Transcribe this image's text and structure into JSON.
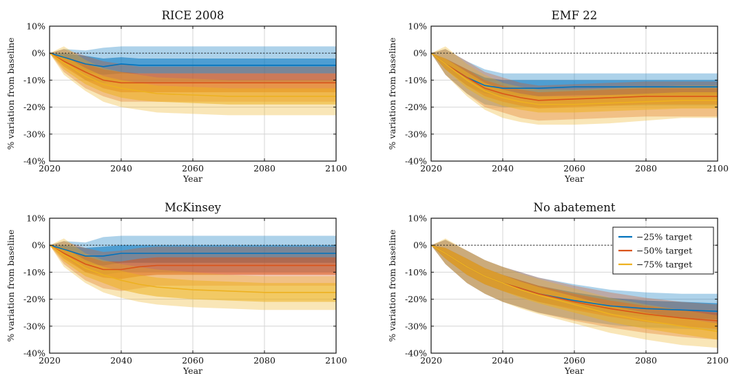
{
  "chart_data": [
    {
      "type": "area",
      "title": "RICE 2008",
      "xlabel": "Year",
      "ylabel": "% variation from baseline",
      "xlim": [
        2020,
        2100
      ],
      "ylim": [
        -40,
        10
      ],
      "xticks": [
        "2020",
        "2040",
        "2060",
        "2080",
        "2100"
      ],
      "yticks": [
        "10%",
        "0%",
        "-10%",
        "-20%",
        "-30%",
        "-40%"
      ],
      "grid": true,
      "baseline": 0,
      "legend": false,
      "x": [
        2020,
        2024,
        2030,
        2035,
        2040,
        2045,
        2050,
        2060,
        2070,
        2080,
        2090,
        2100
      ],
      "series": [
        {
          "name": "−25% target",
          "color": "#0072BD",
          "median": [
            0,
            -1.5,
            -4,
            -5,
            -4,
            -4.5,
            -4.5,
            -4.5,
            -4.5,
            -4.5,
            -4.5,
            -4.5
          ],
          "inner_lo": [
            0,
            -3,
            -7,
            -8,
            -7.5,
            -7.5,
            -7.5,
            -7.5,
            -7.5,
            -7.5,
            -7.5,
            -7.5
          ],
          "inner_hi": [
            0,
            0,
            -1,
            -2,
            -1.5,
            -2,
            -2,
            -2,
            -2,
            -2,
            -2,
            -2
          ],
          "outer_lo": [
            0,
            -4,
            -10,
            -11,
            -11,
            -11,
            -11,
            -11,
            -11,
            -11,
            -11,
            -11
          ],
          "outer_hi": [
            0,
            1.5,
            1,
            2,
            2.5,
            2.5,
            2.5,
            2.5,
            2.5,
            2.5,
            2.5,
            2.5
          ]
        },
        {
          "name": "−50% target",
          "color": "#D95319",
          "median": [
            0,
            -3,
            -7,
            -10,
            -11,
            -11,
            -11,
            -11,
            -11,
            -11,
            -11,
            -11
          ],
          "inner_lo": [
            0,
            -5,
            -10,
            -13,
            -14.5,
            -14.5,
            -14.5,
            -14.5,
            -14.5,
            -14.5,
            -14.5,
            -14.5
          ],
          "inner_hi": [
            0,
            -1,
            -4,
            -6,
            -7,
            -7.5,
            -7.5,
            -7.5,
            -7.5,
            -7.5,
            -7.5,
            -7.5
          ],
          "outer_lo": [
            0,
            -7,
            -13,
            -16,
            -18,
            -18,
            -18,
            -18,
            -18,
            -18,
            -18,
            -18
          ],
          "outer_hi": [
            0,
            1.5,
            -1,
            -3,
            -4,
            -5,
            -5,
            -5,
            -5,
            -5,
            -5,
            -5
          ]
        },
        {
          "name": "−75% target",
          "color": "#EDB120",
          "median": [
            0,
            -3.5,
            -8.5,
            -11.5,
            -13,
            -14,
            -15,
            -15.5,
            -16,
            -16,
            -16,
            -16
          ],
          "inner_lo": [
            0,
            -6,
            -11.5,
            -14.5,
            -16.5,
            -17.5,
            -18,
            -18.5,
            -19,
            -19,
            -19,
            -19
          ],
          "inner_hi": [
            0,
            -1,
            -5.5,
            -8.5,
            -10,
            -11,
            -12,
            -12.5,
            -13,
            -13,
            -13,
            -13
          ],
          "outer_lo": [
            0,
            -8,
            -14,
            -18,
            -20,
            -21,
            -22,
            -22.5,
            -23,
            -23,
            -23,
            -23
          ],
          "outer_hi": [
            0,
            2.5,
            -2.5,
            -5.5,
            -7,
            -8,
            -9,
            -9.5,
            -10,
            -10,
            -10,
            -10
          ]
        }
      ]
    },
    {
      "type": "area",
      "title": "EMF 22",
      "xlabel": "Year",
      "ylabel": "% variation from baseline",
      "xlim": [
        2020,
        2100
      ],
      "ylim": [
        -40,
        10
      ],
      "xticks": [
        "2020",
        "2040",
        "2060",
        "2080",
        "2100"
      ],
      "yticks": [
        "10%",
        "0%",
        "-10%",
        "-20%",
        "-30%",
        "-40%"
      ],
      "grid": true,
      "baseline": 0,
      "legend": false,
      "x": [
        2020,
        2024,
        2030,
        2035,
        2040,
        2045,
        2050,
        2060,
        2070,
        2080,
        2090,
        2100
      ],
      "series": [
        {
          "name": "−25% target",
          "color": "#0072BD",
          "median": [
            0,
            -4,
            -9,
            -12,
            -13,
            -13,
            -13,
            -12.5,
            -12.5,
            -12.5,
            -12.5,
            -12.5
          ],
          "inner_lo": [
            0,
            -6,
            -12,
            -15,
            -16,
            -16,
            -16,
            -15.5,
            -15.5,
            -15.5,
            -15.5,
            -15.5
          ],
          "inner_hi": [
            0,
            -2,
            -6,
            -9,
            -10,
            -10,
            -10,
            -10,
            -10,
            -10,
            -10,
            -10
          ],
          "outer_lo": [
            0,
            -8,
            -15,
            -19,
            -20,
            -20,
            -20,
            -19.5,
            -19.5,
            -19.5,
            -19.5,
            -19.5
          ],
          "outer_hi": [
            0,
            1.5,
            -3,
            -6,
            -7.5,
            -7.5,
            -7.5,
            -7.5,
            -7.5,
            -7.5,
            -7.5,
            -7.5
          ]
        },
        {
          "name": "−50% target",
          "color": "#D95319",
          "median": [
            0,
            -4,
            -9,
            -13,
            -15,
            -16.5,
            -17.5,
            -17,
            -16.5,
            -16,
            -16,
            -16
          ],
          "inner_lo": [
            0,
            -6,
            -12,
            -16,
            -18,
            -19.5,
            -20.5,
            -20,
            -19.5,
            -19,
            -19,
            -19
          ],
          "inner_hi": [
            0,
            -2,
            -6,
            -10,
            -12,
            -13.5,
            -14.5,
            -14,
            -13.5,
            -13,
            -13,
            -13
          ],
          "outer_lo": [
            0,
            -8,
            -15,
            -20,
            -22,
            -24,
            -25,
            -24.5,
            -24,
            -23.5,
            -23.5,
            -23.5
          ],
          "outer_hi": [
            0,
            1.5,
            -3,
            -7,
            -9,
            -11,
            -12,
            -11.5,
            -11,
            -10.5,
            -10.5,
            -10.5
          ]
        },
        {
          "name": "−75% target",
          "color": "#EDB120",
          "median": [
            0,
            -4,
            -10,
            -14,
            -16.5,
            -18,
            -19,
            -19,
            -18.5,
            -18,
            -17.5,
            -17.5
          ],
          "inner_lo": [
            0,
            -6,
            -13,
            -17,
            -19.5,
            -21,
            -22,
            -22,
            -21.5,
            -21,
            -20.5,
            -20.5
          ],
          "inner_hi": [
            0,
            -2,
            -7,
            -11,
            -13.5,
            -15,
            -16,
            -16,
            -15.5,
            -15,
            -14.5,
            -14.5
          ],
          "outer_lo": [
            0,
            -8,
            -16,
            -21,
            -24,
            -25.5,
            -26.5,
            -26.5,
            -26,
            -25,
            -24,
            -24
          ],
          "outer_hi": [
            0,
            2.5,
            -4,
            -8,
            -11,
            -12.5,
            -13.5,
            -13.5,
            -13,
            -12.5,
            -12,
            -12
          ]
        }
      ]
    },
    {
      "type": "area",
      "title": "McKinsey",
      "xlabel": "Year",
      "ylabel": "% variation from baseline",
      "xlim": [
        2020,
        2100
      ],
      "ylim": [
        -40,
        10
      ],
      "xticks": [
        "2020",
        "2040",
        "2060",
        "2080",
        "2100"
      ],
      "yticks": [
        "10%",
        "0%",
        "-10%",
        "-20%",
        "-30%",
        "-40%"
      ],
      "grid": true,
      "baseline": 0,
      "legend": false,
      "x": [
        2020,
        2024,
        2030,
        2035,
        2040,
        2045,
        2050,
        2060,
        2070,
        2080,
        2090,
        2100
      ],
      "series": [
        {
          "name": "−25% target",
          "color": "#0072BD",
          "median": [
            0,
            -1.5,
            -4,
            -4,
            -3,
            -3,
            -3,
            -3,
            -3,
            -3,
            -3,
            -3
          ],
          "inner_lo": [
            0,
            -3,
            -7,
            -7.5,
            -6.5,
            -6.5,
            -6.5,
            -6.5,
            -6.5,
            -6.5,
            -6.5,
            -6.5
          ],
          "inner_hi": [
            0,
            0,
            -1,
            -0.5,
            0,
            0,
            0,
            0,
            0,
            0,
            0,
            0
          ],
          "outer_lo": [
            0,
            -4,
            -10,
            -11,
            -10,
            -10,
            -10,
            -10,
            -10,
            -10,
            -10,
            -10
          ],
          "outer_hi": [
            0,
            1.5,
            1,
            3,
            3.5,
            3.5,
            3.5,
            3.5,
            3.5,
            3.5,
            3.5,
            3.5
          ]
        },
        {
          "name": "−50% target",
          "color": "#D95319",
          "median": [
            0,
            -3,
            -7,
            -9,
            -9,
            -8,
            -7.5,
            -7.5,
            -7.5,
            -7.5,
            -7.5,
            -7.5
          ],
          "inner_lo": [
            0,
            -5,
            -10,
            -12,
            -12.5,
            -11.5,
            -11,
            -11,
            -11,
            -11,
            -11,
            -11
          ],
          "inner_hi": [
            0,
            -1,
            -4,
            -6,
            -6,
            -5,
            -4.5,
            -4.5,
            -4.5,
            -4.5,
            -4.5,
            -4.5
          ],
          "outer_lo": [
            0,
            -7,
            -13,
            -16,
            -17,
            -16,
            -15,
            -15,
            -15,
            -15,
            -15,
            -15
          ],
          "outer_hi": [
            0,
            1.5,
            -1,
            -2.5,
            -2,
            -1,
            -0.5,
            -0.5,
            -0.5,
            -0.5,
            -0.5,
            -0.5
          ]
        },
        {
          "name": "−75% target",
          "color": "#EDB120",
          "median": [
            0,
            -3.5,
            -8.5,
            -11,
            -13,
            -14.5,
            -15.5,
            -16.5,
            -17,
            -17.5,
            -17.5,
            -17.5
          ],
          "inner_lo": [
            0,
            -6,
            -11.5,
            -14,
            -16.5,
            -18,
            -19,
            -20,
            -20.5,
            -21,
            -21,
            -21
          ],
          "inner_hi": [
            0,
            -1,
            -5.5,
            -8,
            -9.5,
            -11,
            -12,
            -13,
            -13.5,
            -14,
            -14,
            -14
          ],
          "outer_lo": [
            0,
            -8,
            -14,
            -17.5,
            -19.5,
            -21,
            -22,
            -23,
            -23.5,
            -24,
            -24,
            -24
          ],
          "outer_hi": [
            0,
            2.5,
            -3,
            -5.5,
            -7,
            -8,
            -9,
            -10,
            -11,
            -11.5,
            -11.5,
            -11.5
          ]
        }
      ]
    },
    {
      "type": "area",
      "title": "No abatement",
      "xlabel": "Year",
      "ylabel": "% variation from baseline",
      "xlim": [
        2020,
        2100
      ],
      "ylim": [
        -40,
        10
      ],
      "xticks": [
        "2020",
        "2040",
        "2060",
        "2080",
        "2100"
      ],
      "yticks": [
        "10%",
        "0%",
        "-10%",
        "-20%",
        "-30%",
        "-40%"
      ],
      "grid": true,
      "baseline": 0,
      "legend": true,
      "legend_position": "top-right",
      "x": [
        2020,
        2024,
        2030,
        2035,
        2040,
        2045,
        2050,
        2060,
        2070,
        2080,
        2090,
        2100
      ],
      "series": [
        {
          "name": "−25% target",
          "color": "#0072BD",
          "median": [
            0,
            -3,
            -8,
            -11.5,
            -14,
            -16,
            -18,
            -20.5,
            -22.5,
            -23.5,
            -24,
            -24.5
          ],
          "inner_lo": [
            0,
            -5,
            -11,
            -14.5,
            -17,
            -19,
            -21,
            -23.5,
            -25.5,
            -26.5,
            -27,
            -27.5
          ],
          "inner_hi": [
            0,
            -1,
            -5,
            -8.5,
            -11,
            -13,
            -15,
            -17.5,
            -19.5,
            -20.5,
            -21,
            -21.5
          ],
          "outer_lo": [
            0,
            -7,
            -14,
            -18,
            -21,
            -23,
            -25,
            -27.5,
            -29.5,
            -30.5,
            -31,
            -31.5
          ],
          "outer_hi": [
            0,
            2,
            -2,
            -5.5,
            -8,
            -10,
            -12,
            -14.5,
            -16.5,
            -17.5,
            -18,
            -18
          ]
        },
        {
          "name": "−50% target",
          "color": "#D95319",
          "median": [
            0,
            -3,
            -8,
            -11.5,
            -14,
            -16,
            -18,
            -21,
            -23.5,
            -25.5,
            -27,
            -28
          ],
          "inner_lo": [
            0,
            -5,
            -11,
            -14.5,
            -17,
            -19,
            -21,
            -24,
            -26.5,
            -28.5,
            -30,
            -31
          ],
          "inner_hi": [
            0,
            -1,
            -5,
            -8.5,
            -11,
            -13,
            -15,
            -18,
            -20.5,
            -22.5,
            -24,
            -25
          ],
          "outer_lo": [
            0,
            -7,
            -14,
            -18,
            -21,
            -23,
            -25,
            -28,
            -30.5,
            -32.5,
            -34,
            -35
          ],
          "outer_hi": [
            0,
            2,
            -2,
            -5.5,
            -8,
            -10,
            -12,
            -15,
            -17.5,
            -19.5,
            -21,
            -22
          ]
        },
        {
          "name": "−75% target",
          "color": "#EDB120",
          "median": [
            0,
            -3,
            -8,
            -11.5,
            -14,
            -16.5,
            -18.5,
            -22,
            -25.5,
            -28,
            -30,
            -32
          ],
          "inner_lo": [
            0,
            -5,
            -11,
            -14.5,
            -17,
            -19.5,
            -21.5,
            -25,
            -28.5,
            -31,
            -33,
            -35
          ],
          "inner_hi": [
            0,
            -1,
            -5,
            -8.5,
            -11,
            -13.5,
            -15.5,
            -19,
            -22.5,
            -25,
            -27,
            -29
          ],
          "outer_lo": [
            0,
            -7,
            -14,
            -18,
            -21,
            -23.5,
            -25.5,
            -29,
            -32.5,
            -35,
            -37,
            -38
          ],
          "outer_hi": [
            0,
            2.5,
            -2,
            -5.5,
            -8,
            -10.5,
            -12.5,
            -16,
            -19.5,
            -22,
            -24,
            -26
          ]
        }
      ]
    }
  ]
}
